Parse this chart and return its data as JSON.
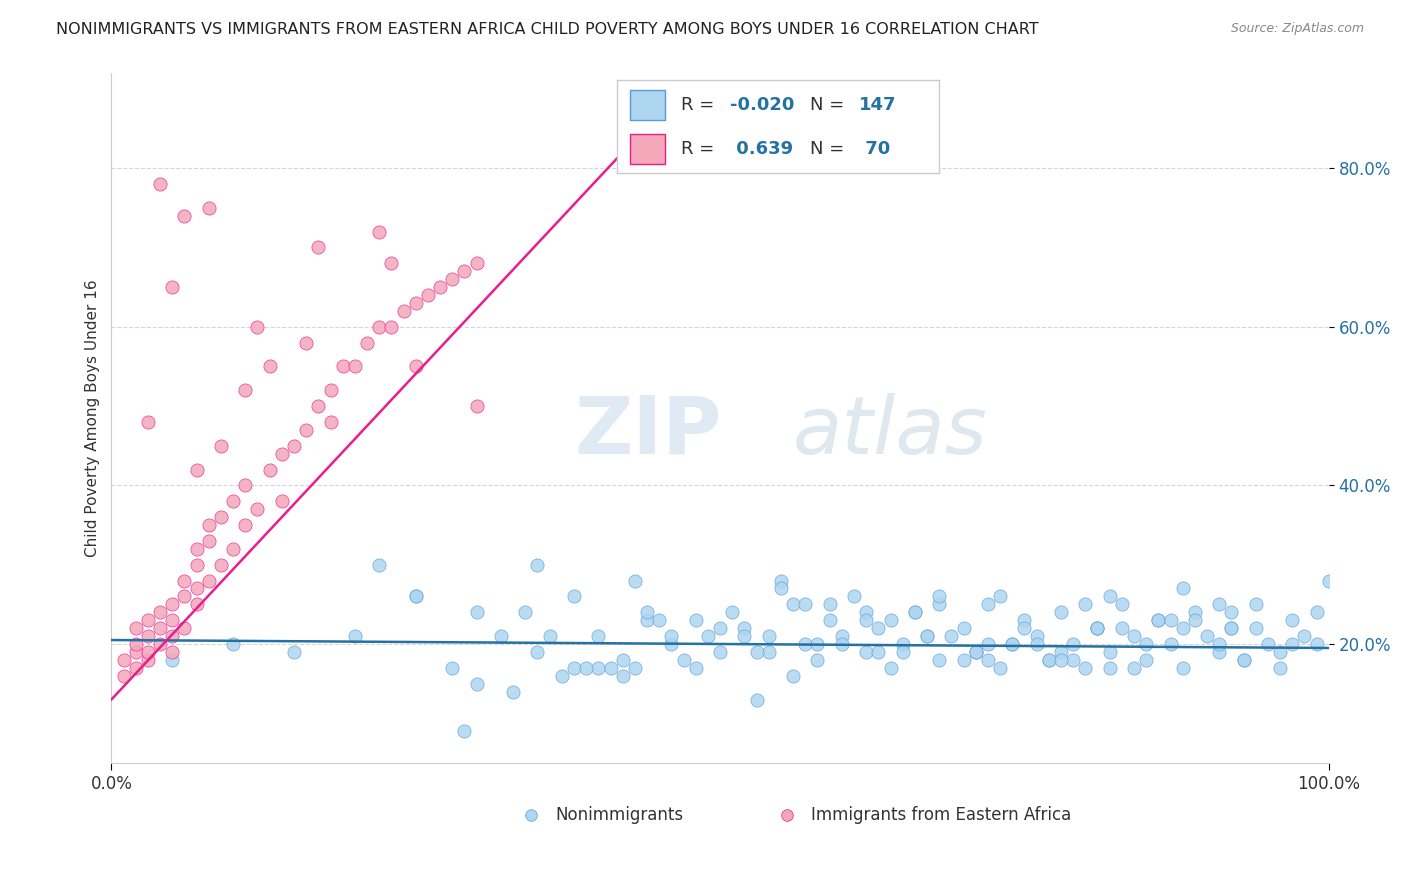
{
  "title": "NONIMMIGRANTS VS IMMIGRANTS FROM EASTERN AFRICA CHILD POVERTY AMONG BOYS UNDER 16 CORRELATION CHART",
  "source": "Source: ZipAtlas.com",
  "ylabel": "Child Poverty Among Boys Under 16",
  "ylabel_ticks": [
    "20.0%",
    "40.0%",
    "60.0%",
    "80.0%"
  ],
  "ylabel_values": [
    0.2,
    0.4,
    0.6,
    0.8
  ],
  "xlim": [
    0.0,
    1.0
  ],
  "ylim": [
    0.05,
    0.92
  ],
  "watermark_zip": "ZIP",
  "watermark_atlas": "atlas",
  "color_blue_fill": "#AED6F1",
  "color_blue_edge": "#5B9BD5",
  "color_pink_fill": "#F4A7B9",
  "color_pink_edge": "#E91E8C",
  "color_line_blue": "#2471A3",
  "color_line_pink": "#E91E8C",
  "nonimmigrant_x": [
    0.05,
    0.1,
    0.15,
    0.2,
    0.25,
    0.3,
    0.35,
    0.38,
    0.4,
    0.42,
    0.44,
    0.46,
    0.48,
    0.5,
    0.52,
    0.54,
    0.55,
    0.56,
    0.57,
    0.58,
    0.59,
    0.6,
    0.62,
    0.63,
    0.64,
    0.65,
    0.66,
    0.67,
    0.68,
    0.7,
    0.71,
    0.72,
    0.73,
    0.74,
    0.75,
    0.76,
    0.77,
    0.78,
    0.79,
    0.8,
    0.81,
    0.82,
    0.83,
    0.84,
    0.85,
    0.86,
    0.87,
    0.88,
    0.89,
    0.9,
    0.91,
    0.92,
    0.93,
    0.94,
    0.95,
    0.96,
    0.97,
    0.98,
    0.99,
    1.0,
    0.25,
    0.35,
    0.45,
    0.55,
    0.65,
    0.75,
    0.85,
    0.42,
    0.52,
    0.62,
    0.72,
    0.82,
    0.92,
    0.38,
    0.48,
    0.58,
    0.68,
    0.78,
    0.88,
    0.3,
    0.5,
    0.6,
    0.7,
    0.8,
    0.4,
    0.44,
    0.46,
    0.54,
    0.64,
    0.74,
    0.84,
    0.94,
    0.33,
    0.53,
    0.63,
    0.73,
    0.83,
    0.93,
    0.36,
    0.56,
    0.66,
    0.76,
    0.86,
    0.96,
    0.43,
    0.57,
    0.67,
    0.77,
    0.87,
    0.97,
    0.28,
    0.34,
    0.49,
    0.61,
    0.71,
    0.81,
    0.91,
    0.39,
    0.59,
    0.69,
    0.79,
    0.89,
    0.99,
    0.41,
    0.51,
    0.71,
    0.81,
    0.91,
    0.32,
    0.47,
    0.62,
    0.72,
    0.82,
    0.92,
    0.29,
    0.37,
    0.53,
    0.68,
    0.78,
    0.88,
    0.22,
    0.43
  ],
  "nonimmigrant_y": [
    0.18,
    0.2,
    0.19,
    0.21,
    0.26,
    0.24,
    0.19,
    0.26,
    0.21,
    0.18,
    0.23,
    0.2,
    0.17,
    0.19,
    0.22,
    0.21,
    0.28,
    0.25,
    0.2,
    0.18,
    0.23,
    0.21,
    0.19,
    0.22,
    0.17,
    0.2,
    0.24,
    0.21,
    0.18,
    0.22,
    0.19,
    0.25,
    0.17,
    0.2,
    0.23,
    0.21,
    0.18,
    0.24,
    0.2,
    0.17,
    0.22,
    0.19,
    0.25,
    0.21,
    0.18,
    0.23,
    0.2,
    0.17,
    0.24,
    0.21,
    0.19,
    0.22,
    0.18,
    0.25,
    0.2,
    0.17,
    0.23,
    0.21,
    0.24,
    0.28,
    0.26,
    0.3,
    0.23,
    0.27,
    0.19,
    0.22,
    0.2,
    0.16,
    0.21,
    0.24,
    0.18,
    0.26,
    0.22,
    0.17,
    0.23,
    0.2,
    0.25,
    0.19,
    0.27,
    0.15,
    0.22,
    0.2,
    0.18,
    0.25,
    0.17,
    0.24,
    0.21,
    0.19,
    0.23,
    0.2,
    0.17,
    0.22,
    0.14,
    0.13,
    0.19,
    0.26,
    0.22,
    0.18,
    0.21,
    0.16,
    0.24,
    0.2,
    0.23,
    0.19,
    0.17,
    0.25,
    0.21,
    0.18,
    0.23,
    0.2,
    0.17,
    0.24,
    0.21,
    0.26,
    0.19,
    0.22,
    0.2,
    0.17,
    0.25,
    0.21,
    0.18,
    0.23,
    0.2,
    0.17,
    0.24,
    0.19,
    0.22,
    0.25,
    0.21,
    0.18,
    0.23,
    0.2,
    0.17,
    0.24,
    0.09,
    0.16,
    0.19,
    0.26,
    0.18,
    0.22,
    0.3,
    0.28
  ],
  "immigrant_x": [
    0.01,
    0.01,
    0.02,
    0.02,
    0.02,
    0.02,
    0.03,
    0.03,
    0.03,
    0.03,
    0.04,
    0.04,
    0.04,
    0.05,
    0.05,
    0.05,
    0.05,
    0.06,
    0.06,
    0.06,
    0.07,
    0.07,
    0.07,
    0.07,
    0.08,
    0.08,
    0.08,
    0.09,
    0.09,
    0.1,
    0.1,
    0.11,
    0.11,
    0.12,
    0.13,
    0.14,
    0.15,
    0.16,
    0.17,
    0.18,
    0.19,
    0.2,
    0.21,
    0.22,
    0.23,
    0.24,
    0.25,
    0.26,
    0.27,
    0.28,
    0.29,
    0.3,
    0.13,
    0.16,
    0.22,
    0.08,
    0.04,
    0.06,
    0.09,
    0.11,
    0.14,
    0.18,
    0.25,
    0.3,
    0.07,
    0.03,
    0.05,
    0.12,
    0.17,
    0.23
  ],
  "immigrant_y": [
    0.18,
    0.16,
    0.19,
    0.17,
    0.2,
    0.22,
    0.18,
    0.21,
    0.19,
    0.23,
    0.2,
    0.22,
    0.24,
    0.19,
    0.21,
    0.25,
    0.23,
    0.22,
    0.26,
    0.28,
    0.25,
    0.27,
    0.3,
    0.32,
    0.28,
    0.33,
    0.35,
    0.3,
    0.36,
    0.32,
    0.38,
    0.35,
    0.4,
    0.37,
    0.42,
    0.44,
    0.45,
    0.47,
    0.5,
    0.52,
    0.55,
    0.55,
    0.58,
    0.6,
    0.6,
    0.62,
    0.63,
    0.64,
    0.65,
    0.66,
    0.67,
    0.68,
    0.55,
    0.58,
    0.72,
    0.75,
    0.78,
    0.74,
    0.45,
    0.52,
    0.38,
    0.48,
    0.55,
    0.5,
    0.42,
    0.48,
    0.65,
    0.6,
    0.7,
    0.68
  ],
  "blue_line_x": [
    0.0,
    1.0
  ],
  "blue_line_y": [
    0.205,
    0.195
  ],
  "pink_line_x": [
    0.0,
    0.42
  ],
  "pink_line_y": [
    0.13,
    0.82
  ]
}
